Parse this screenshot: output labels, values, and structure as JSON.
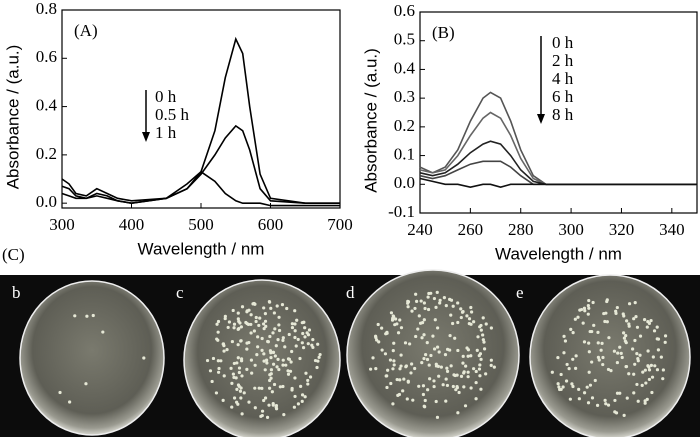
{
  "chart_data": [
    {
      "type": "line",
      "label": "(A)",
      "x_label": "Wavelength / nm",
      "y_label": "Absorbance / (a.u.)",
      "x": [
        300,
        310,
        320,
        335,
        350,
        365,
        380,
        400,
        450,
        480,
        500,
        520,
        535,
        550,
        560,
        570,
        585,
        600,
        650,
        700
      ],
      "series": [
        {
          "name": "0 h",
          "color": "#000000",
          "values": [
            0.1,
            0.08,
            0.04,
            0.03,
            0.06,
            0.04,
            0.02,
            0.01,
            0.02,
            0.06,
            0.13,
            0.3,
            0.52,
            0.68,
            0.62,
            0.4,
            0.12,
            0.02,
            0.0,
            0.0
          ]
        },
        {
          "name": "0.5 h",
          "color": "#000000",
          "values": [
            0.07,
            0.06,
            0.03,
            0.02,
            0.04,
            0.03,
            0.01,
            0.0,
            0.02,
            0.06,
            0.12,
            0.2,
            0.27,
            0.32,
            0.3,
            0.22,
            0.06,
            0.01,
            0.0,
            0.0
          ]
        },
        {
          "name": "1 h",
          "color": "#000000",
          "values": [
            0.04,
            0.03,
            0.02,
            0.02,
            0.03,
            0.02,
            0.01,
            0.0,
            0.02,
            0.08,
            0.13,
            0.09,
            0.04,
            0.01,
            0.0,
            0.0,
            0.0,
            -0.01,
            -0.01,
            -0.01
          ]
        }
      ],
      "xlim": [
        300,
        700
      ],
      "xticks": [
        300,
        400,
        500,
        600,
        700
      ],
      "ylim": [
        -0.02,
        0.8
      ],
      "yticks": [
        {
          "value": 0,
          "label": "0.0"
        },
        0.2,
        0.4,
        0.6,
        0.8
      ]
    },
    {
      "type": "line",
      "label": "(B)",
      "x_label": "Wavelength / nm",
      "y_label": "Absorbance / (a.u.)",
      "x": [
        240,
        245,
        250,
        255,
        260,
        265,
        268,
        272,
        276,
        280,
        285,
        290,
        300,
        320,
        350
      ],
      "series": [
        {
          "name": "0 h",
          "color": "#555555",
          "values": [
            0.06,
            0.04,
            0.06,
            0.12,
            0.22,
            0.3,
            0.32,
            0.3,
            0.22,
            0.12,
            0.03,
            0.0,
            0.0,
            0.0,
            0.0
          ]
        },
        {
          "name": "2 h",
          "color": "#666666",
          "values": [
            0.05,
            0.04,
            0.05,
            0.1,
            0.17,
            0.23,
            0.25,
            0.23,
            0.17,
            0.09,
            0.02,
            0.0,
            0.0,
            0.0,
            0.0
          ]
        },
        {
          "name": "4 h",
          "color": "#222222",
          "values": [
            0.04,
            0.03,
            0.04,
            0.07,
            0.11,
            0.14,
            0.15,
            0.14,
            0.1,
            0.05,
            0.01,
            0.0,
            0.0,
            0.0,
            0.0
          ]
        },
        {
          "name": "6 h",
          "color": "#444444",
          "values": [
            0.03,
            0.02,
            0.03,
            0.05,
            0.07,
            0.08,
            0.08,
            0.08,
            0.06,
            0.03,
            0.0,
            0.0,
            0.0,
            0.0,
            0.0
          ]
        },
        {
          "name": "8 h",
          "color": "#111111",
          "values": [
            0.02,
            0.01,
            0.0,
            0.0,
            -0.01,
            0.0,
            0.0,
            -0.01,
            0.0,
            0.0,
            0.0,
            0.0,
            0.0,
            0.0,
            0.0
          ]
        }
      ],
      "xlim": [
        240,
        350
      ],
      "xticks": [
        240,
        260,
        280,
        300,
        320,
        340
      ],
      "ylim": [
        -0.1,
        0.6
      ],
      "yticks": [
        -0.1,
        {
          "value": 0,
          "label": "0.0"
        },
        0.1,
        0.2,
        0.3,
        0.4,
        0.5,
        0.6
      ]
    }
  ],
  "photo": {
    "label": "(C)",
    "panels": [
      "b",
      "c",
      "d",
      "e"
    ]
  }
}
